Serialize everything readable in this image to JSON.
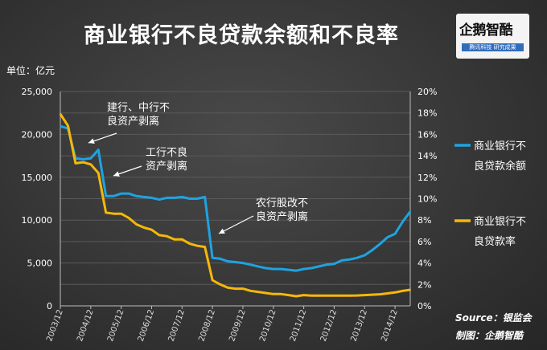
{
  "page": {
    "title": "商业银行不良贷款余额和不良率",
    "unit": "单位：亿元",
    "logo": {
      "name": "企鹅智酷",
      "tagline": "腾讯科技  研究成果"
    },
    "source": "Source：银监会",
    "made_by": "制图：企鹅智酷"
  },
  "colors": {
    "balance": "#1fa3e0",
    "ratio": "#f5b80a",
    "text": "#ffffff",
    "grid": "#5a5a5a"
  },
  "chart_data": {
    "type": "line",
    "title": "商业银行不良贷款余额和不良率",
    "xlabel": "",
    "ylabel": "单位：亿元",
    "x_tick_labels": [
      "2003/12",
      "2004/12",
      "2005/12",
      "2006/12",
      "2007/12",
      "2008/12",
      "2009/12",
      "2010/12",
      "2011/12",
      "2012/12",
      "2013/12",
      "2014/12"
    ],
    "y_left": {
      "range": [
        0,
        25000
      ],
      "ticks": [
        "0",
        "5,000",
        "10,000",
        "15,000",
        "20,000",
        "25,000"
      ]
    },
    "y_right": {
      "range": [
        0,
        20
      ],
      "ticks": [
        "0%",
        "2%",
        "4%",
        "6%",
        "8%",
        "10%",
        "12%",
        "14%",
        "16%",
        "18%",
        "20%"
      ]
    },
    "grid": true,
    "legend_position": "right",
    "series": [
      {
        "name": "商业银行不良贷款余额",
        "axis": "left",
        "color": "#1fa3e0",
        "points": [
          [
            "2003/12",
            20950
          ],
          [
            "2004/03",
            20700
          ],
          [
            "2004/06",
            17200
          ],
          [
            "2004/09",
            17100
          ],
          [
            "2004/12",
            17200
          ],
          [
            "2005/03",
            18200
          ],
          [
            "2005/06",
            12800
          ],
          [
            "2005/09",
            12800
          ],
          [
            "2005/12",
            13100
          ],
          [
            "2006/03",
            13100
          ],
          [
            "2006/06",
            12800
          ],
          [
            "2006/09",
            12700
          ],
          [
            "2006/12",
            12600
          ],
          [
            "2007/03",
            12400
          ],
          [
            "2007/06",
            12600
          ],
          [
            "2007/09",
            12600
          ],
          [
            "2007/12",
            12700
          ],
          [
            "2008/03",
            12500
          ],
          [
            "2008/06",
            12500
          ],
          [
            "2008/09",
            12700
          ],
          [
            "2008/12",
            5600
          ],
          [
            "2009/03",
            5500
          ],
          [
            "2009/06",
            5200
          ],
          [
            "2009/09",
            5100
          ],
          [
            "2009/12",
            5000
          ],
          [
            "2010/03",
            4800
          ],
          [
            "2010/06",
            4600
          ],
          [
            "2010/09",
            4400
          ],
          [
            "2010/12",
            4300
          ],
          [
            "2011/03",
            4300
          ],
          [
            "2011/06",
            4200
          ],
          [
            "2011/09",
            4100
          ],
          [
            "2011/12",
            4300
          ],
          [
            "2012/03",
            4400
          ],
          [
            "2012/06",
            4600
          ],
          [
            "2012/09",
            4800
          ],
          [
            "2012/12",
            4900
          ],
          [
            "2013/03",
            5300
          ],
          [
            "2013/06",
            5400
          ],
          [
            "2013/09",
            5600
          ],
          [
            "2013/12",
            5900
          ],
          [
            "2014/03",
            6500
          ],
          [
            "2014/06",
            7200
          ],
          [
            "2014/09",
            8000
          ],
          [
            "2014/12",
            8400
          ],
          [
            "2015/03",
            9800
          ],
          [
            "2015/06",
            11000
          ]
        ]
      },
      {
        "name": "商业银行不良贷款率",
        "axis": "right",
        "color": "#f5b80a",
        "points": [
          [
            "2003/12",
            17.9
          ],
          [
            "2004/03",
            16.8
          ],
          [
            "2004/06",
            13.3
          ],
          [
            "2004/09",
            13.4
          ],
          [
            "2004/12",
            13.2
          ],
          [
            "2005/03",
            12.4
          ],
          [
            "2005/06",
            8.7
          ],
          [
            "2005/09",
            8.6
          ],
          [
            "2005/12",
            8.6
          ],
          [
            "2006/03",
            8.2
          ],
          [
            "2006/06",
            7.6
          ],
          [
            "2006/09",
            7.3
          ],
          [
            "2006/12",
            7.1
          ],
          [
            "2007/03",
            6.6
          ],
          [
            "2007/06",
            6.5
          ],
          [
            "2007/09",
            6.2
          ],
          [
            "2007/12",
            6.2
          ],
          [
            "2008/03",
            5.8
          ],
          [
            "2008/06",
            5.6
          ],
          [
            "2008/09",
            5.5
          ],
          [
            "2008/12",
            2.4
          ],
          [
            "2009/03",
            2.0
          ],
          [
            "2009/06",
            1.7
          ],
          [
            "2009/09",
            1.6
          ],
          [
            "2009/12",
            1.6
          ],
          [
            "2010/03",
            1.4
          ],
          [
            "2010/06",
            1.3
          ],
          [
            "2010/09",
            1.2
          ],
          [
            "2010/12",
            1.1
          ],
          [
            "2011/03",
            1.1
          ],
          [
            "2011/06",
            1.0
          ],
          [
            "2011/09",
            0.9
          ],
          [
            "2011/12",
            1.0
          ],
          [
            "2012/03",
            0.95
          ],
          [
            "2012/06",
            0.95
          ],
          [
            "2012/09",
            0.95
          ],
          [
            "2012/12",
            0.95
          ],
          [
            "2013/03",
            0.96
          ],
          [
            "2013/06",
            0.96
          ],
          [
            "2013/09",
            0.97
          ],
          [
            "2013/12",
            1.0
          ],
          [
            "2014/03",
            1.04
          ],
          [
            "2014/06",
            1.08
          ],
          [
            "2014/09",
            1.16
          ],
          [
            "2014/12",
            1.25
          ],
          [
            "2015/03",
            1.39
          ],
          [
            "2015/06",
            1.5
          ]
        ]
      }
    ],
    "legend": [
      "商业银行不\n良贷款余额",
      "商业银行不\n良贷款率"
    ],
    "annotations": [
      {
        "text": [
          "建行、中行不",
          "良资产剥离"
        ],
        "at": "2004/06"
      },
      {
        "text": [
          "工行不良",
          "资产剥离"
        ],
        "at": "2005/06"
      },
      {
        "text": [
          "农行股改不",
          "良资产剥离"
        ],
        "at": "2008/12"
      }
    ]
  }
}
